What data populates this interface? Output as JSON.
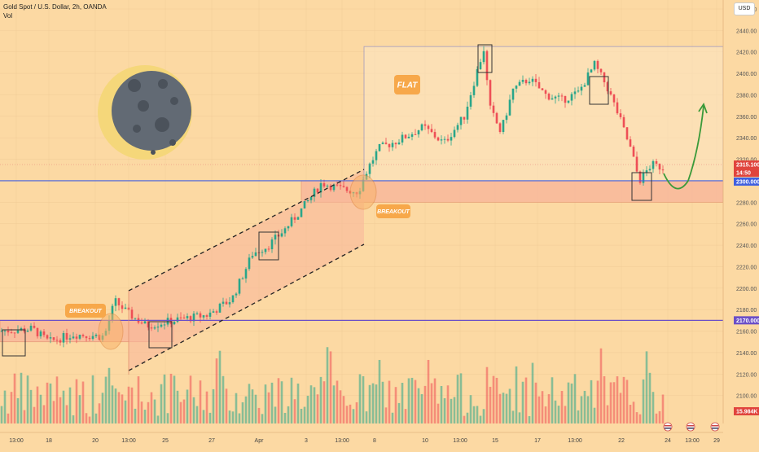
{
  "header": {
    "symbol": "Gold Spot / U.S. Dollar, 2h, OANDA",
    "volume_label": "Vol",
    "currency": "USD"
  },
  "colors": {
    "background": "#fcd9a3",
    "bull": "#2aa68a",
    "bear": "#ee4f56",
    "zone": "#f9b79b",
    "support_line": "#6b4fc7",
    "resistance_line": "#3f5fe0",
    "arrow": "#3a9a3a",
    "label_bg": "#f7a84a"
  },
  "annotations": {
    "breakout1": "BREAKOUT",
    "breakout2": "BREAKOUT",
    "flat": "FLAT"
  },
  "price_tags": {
    "current": "2315.100",
    "countdown": "14:50",
    "level_mid": "2300.000",
    "level_low": "2170.000",
    "volume": "15.984K"
  },
  "chart_data": {
    "type": "candlestick",
    "symbol": "XAUUSD",
    "timeframe": "2h",
    "ylim": [
      2080,
      2460
    ],
    "y_ticks": [
      2100,
      2120,
      2140,
      2160,
      2180,
      2200,
      2220,
      2240,
      2260,
      2280,
      2300,
      2320,
      2340,
      2360,
      2380,
      2400,
      2420,
      2440,
      2460
    ],
    "x_ticks": [
      "13:00",
      "18",
      "20",
      "13:00",
      "25",
      "27",
      "Apr",
      "3",
      "13:00",
      "8",
      "10",
      "13:00",
      "15",
      "17",
      "13:00",
      "22",
      "24",
      "13:00",
      "29"
    ],
    "price_path": [
      [
        0,
        2160
      ],
      [
        40,
        2162
      ],
      [
        60,
        2150
      ],
      [
        90,
        2157
      ],
      [
        128,
        2155
      ],
      [
        141,
        2188
      ],
      [
        158,
        2176
      ],
      [
        180,
        2165
      ],
      [
        200,
        2168
      ],
      [
        230,
        2172
      ],
      [
        255,
        2175
      ],
      [
        285,
        2190
      ],
      [
        310,
        2232
      ],
      [
        330,
        2240
      ],
      [
        350,
        2255
      ],
      [
        370,
        2273
      ],
      [
        395,
        2298
      ],
      [
        420,
        2292
      ],
      [
        440,
        2290
      ],
      [
        452,
        2312
      ],
      [
        465,
        2330
      ],
      [
        490,
        2338
      ],
      [
        520,
        2350
      ],
      [
        545,
        2335
      ],
      [
        570,
        2360
      ],
      [
        585,
        2400
      ],
      [
        595,
        2425
      ],
      [
        600,
        2370
      ],
      [
        615,
        2345
      ],
      [
        630,
        2385
      ],
      [
        650,
        2395
      ],
      [
        670,
        2380
      ],
      [
        690,
        2375
      ],
      [
        710,
        2382
      ],
      [
        730,
        2408
      ],
      [
        745,
        2388
      ],
      [
        760,
        2360
      ],
      [
        775,
        2328
      ],
      [
        785,
        2300
      ],
      [
        800,
        2315
      ],
      [
        815,
        2312
      ]
    ],
    "zones": [
      {
        "name": "support-zone",
        "from_index": 0,
        "to_index": 213,
        "y_low": 2150,
        "y_high": 2170
      },
      {
        "name": "breakout-zone",
        "from_index": 370,
        "to_index": 888,
        "y_low": 2280,
        "y_high": 2300
      }
    ],
    "levels": [
      2170,
      2300,
      2315.1,
      2425
    ],
    "flat_range": {
      "y_low": 2300,
      "y_high": 2425
    },
    "projection": "up from 2300 toward 2380"
  }
}
